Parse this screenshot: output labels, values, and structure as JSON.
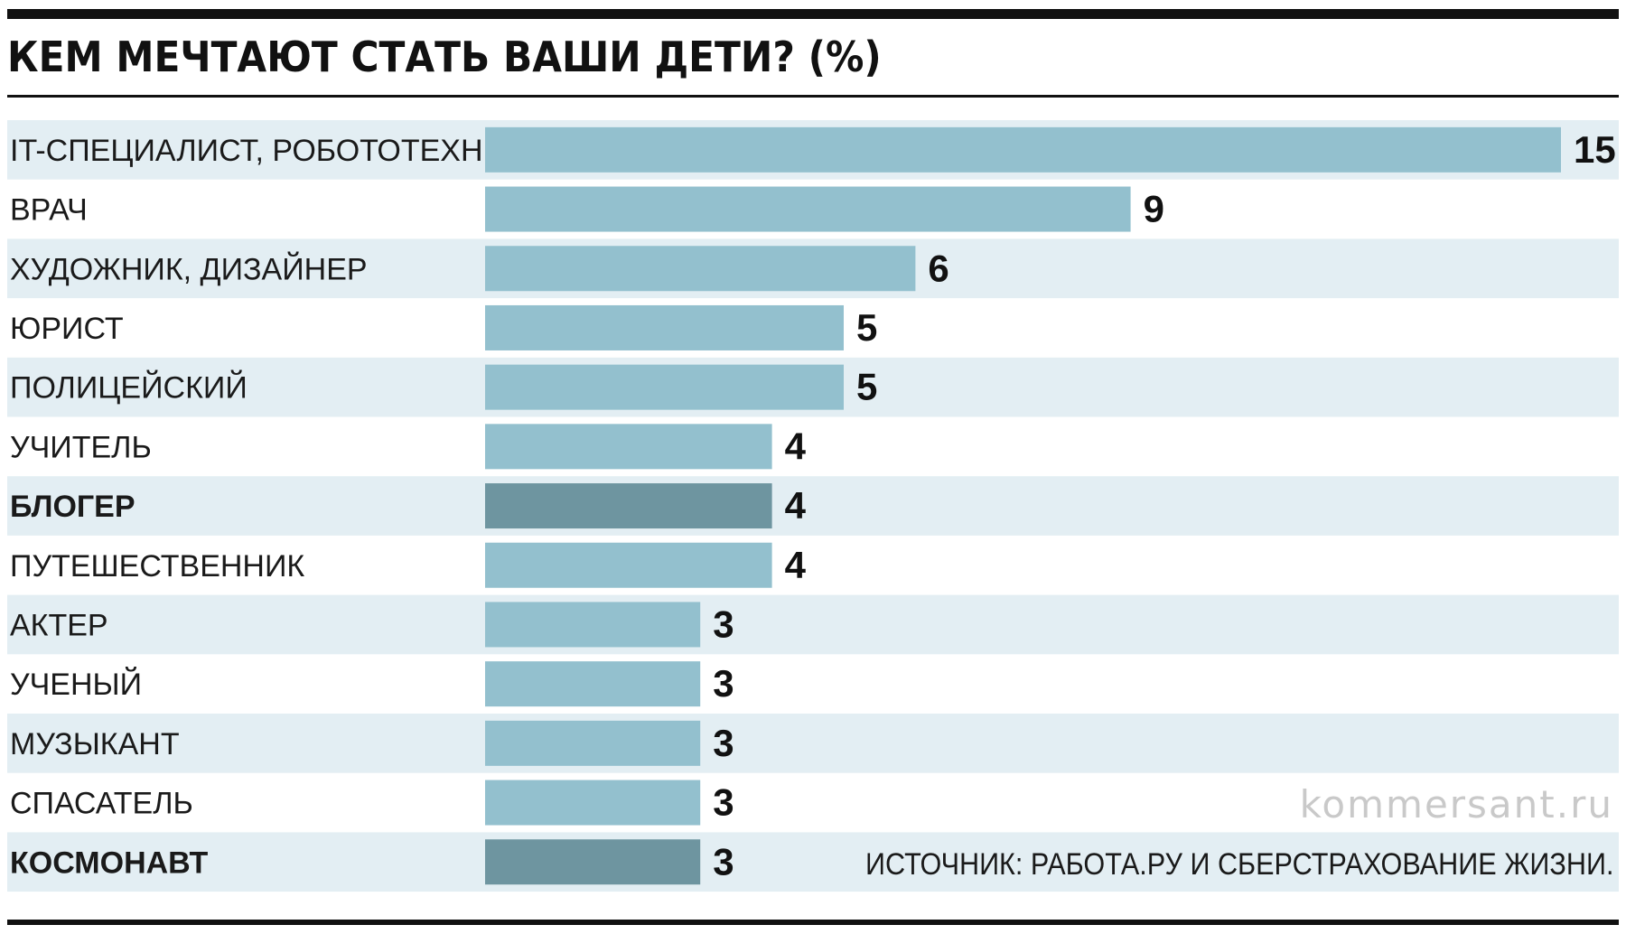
{
  "colors": {
    "bar": "#93c0ce",
    "bar_highlight": "#6e95a0",
    "row_stripe": "#e3eef3",
    "text": "#1a1a1a"
  },
  "chart_data": {
    "type": "bar",
    "orientation": "horizontal",
    "title": "КЕМ МЕЧТАЮТ СТАТЬ ВАШИ ДЕТИ? (%)",
    "categories": [
      "IT-СПЕЦИАЛИСТ, РОБОТОТЕХНИК",
      "ВРАЧ",
      "ХУДОЖНИК, ДИЗАЙНЕР",
      "ЮРИСТ",
      "ПОЛИЦЕЙСКИЙ",
      "УЧИТЕЛЬ",
      "БЛОГЕР",
      "ПУТЕШЕСТВЕННИК",
      "АКТЕР",
      "УЧЕНЫЙ",
      "МУЗЫКАНТ",
      "СПАСАТЕЛЬ",
      "КОСМОНАВТ"
    ],
    "values": [
      15,
      9,
      6,
      5,
      5,
      4,
      4,
      4,
      3,
      3,
      3,
      3,
      3
    ],
    "highlighted": [
      "БЛОГЕР",
      "КОСМОНАВТ"
    ],
    "xlim": [
      0,
      15
    ],
    "grid": false,
    "legend": false,
    "data_labels": true
  },
  "source": "ИСТОЧНИК: РАБОТА.РУ И СБЕРСТРАХОВАНИЕ ЖИЗНИ.",
  "watermark": "kommersant.ru"
}
